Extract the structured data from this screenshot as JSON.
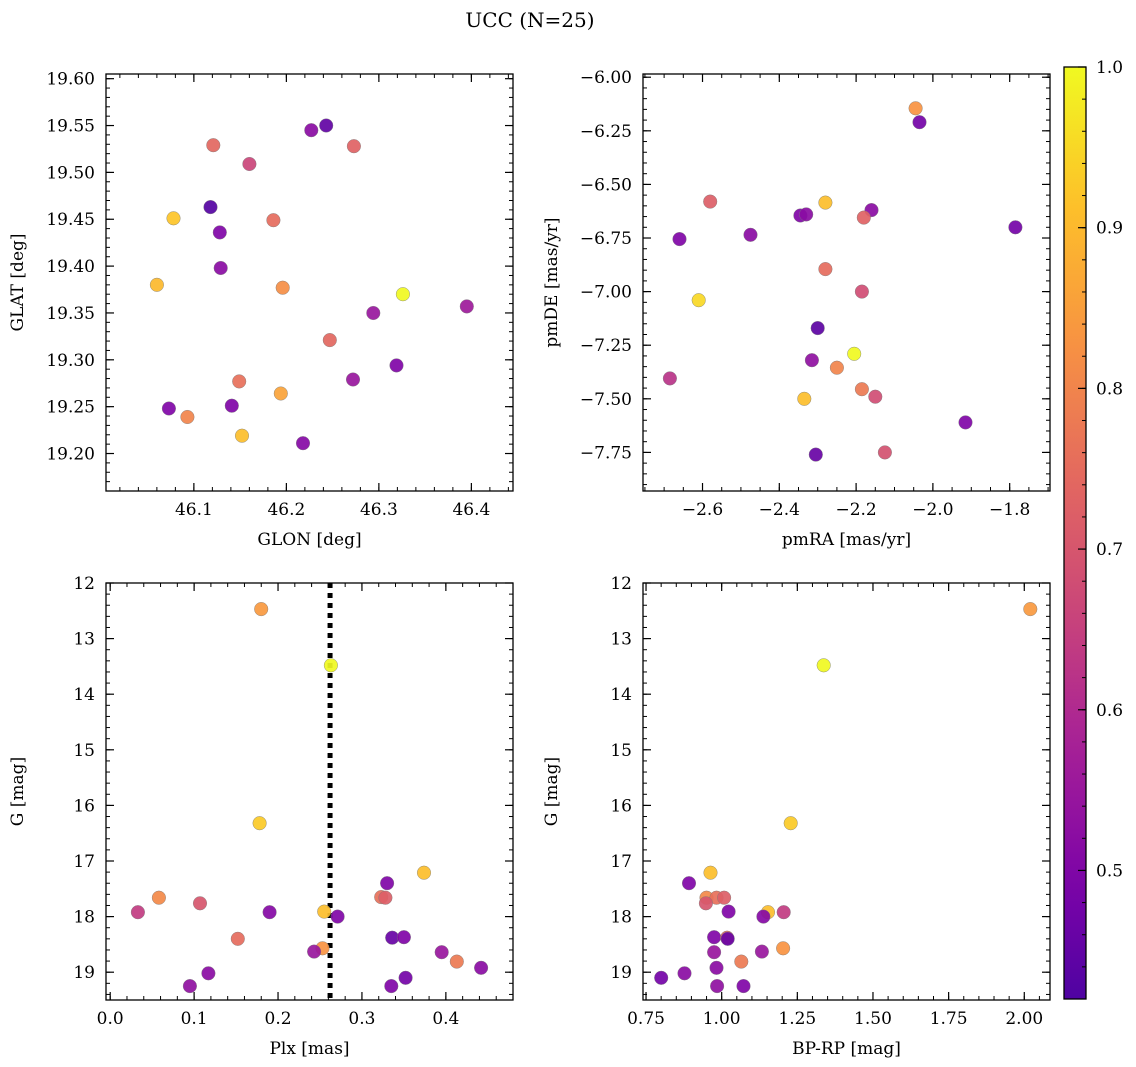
{
  "figure": {
    "title": "UCC (N=25)"
  },
  "colorbar": {
    "colormap": "plasma",
    "min": 0.42,
    "max": 1.0,
    "ticks": [
      0.5,
      0.6,
      0.7,
      0.8,
      0.9,
      1.0
    ],
    "tick_labels": [
      "0.5",
      "0.6",
      "0.7",
      "0.8",
      "0.9",
      "1.0"
    ]
  },
  "chart_data": [
    {
      "type": "scatter",
      "xlabel": "GLON [deg]",
      "ylabel": "GLAT [deg]",
      "xlim": [
        46.005,
        46.445
      ],
      "ylim": [
        19.16,
        19.605
      ],
      "y_inverted": false,
      "xticks": [
        46.1,
        46.2,
        46.3,
        46.4
      ],
      "xtick_labels": [
        "46.1",
        "46.2",
        "46.3",
        "46.4"
      ],
      "yticks": [
        19.2,
        19.25,
        19.3,
        19.35,
        19.4,
        19.45,
        19.5,
        19.55,
        19.6
      ],
      "ytick_labels": [
        "19.20",
        "19.25",
        "19.30",
        "19.35",
        "19.40",
        "19.45",
        "19.50",
        "19.55",
        "19.60"
      ],
      "x": [
        46.243,
        46.227,
        46.121,
        46.273,
        46.16,
        46.078,
        46.118,
        46.186,
        46.128,
        46.129,
        46.06,
        46.196,
        46.326,
        46.395,
        46.294,
        46.247,
        46.319,
        46.272,
        46.149,
        46.194,
        46.073,
        46.141,
        46.093,
        46.152,
        46.218
      ],
      "y": [
        19.55,
        19.545,
        19.529,
        19.528,
        19.509,
        19.451,
        19.463,
        19.449,
        19.436,
        19.398,
        19.38,
        19.377,
        19.37,
        19.357,
        19.35,
        19.321,
        19.294,
        19.279,
        19.277,
        19.264,
        19.248,
        19.251,
        19.239,
        19.219,
        19.211
      ],
      "c": [
        0.45,
        0.52,
        0.74,
        0.73,
        0.66,
        0.92,
        0.43,
        0.75,
        0.5,
        0.52,
        0.9,
        0.82,
        1.0,
        0.56,
        0.55,
        0.74,
        0.5,
        0.55,
        0.76,
        0.86,
        0.5,
        0.5,
        0.8,
        0.91,
        0.51
      ]
    },
    {
      "type": "scatter",
      "xlabel": "pmRA [mas/yr]",
      "ylabel": "pmDE [mas/yr]",
      "xlim": [
        -2.755,
        -1.695
      ],
      "ylim": [
        -7.93,
        -5.985
      ],
      "y_inverted": false,
      "xticks": [
        -2.6,
        -2.4,
        -2.2,
        -2.0,
        -1.8
      ],
      "xtick_labels": [
        "−2.6",
        "−2.4",
        "−2.2",
        "−2.0",
        "−1.8"
      ],
      "yticks": [
        -7.75,
        -7.5,
        -7.25,
        -7.0,
        -6.75,
        -6.5,
        -6.25,
        -6.0
      ],
      "ytick_labels": [
        "−7.75",
        "−7.50",
        "−7.25",
        "−7.00",
        "−6.75",
        "−6.50",
        "−6.25",
        "−6.00"
      ],
      "x": [
        -2.045,
        -2.035,
        -2.58,
        -2.28,
        -2.345,
        -2.33,
        -2.16,
        -2.18,
        -2.66,
        -2.475,
        -2.28,
        -1.785,
        -2.185,
        -2.61,
        -2.3,
        -2.205,
        -2.315,
        -2.25,
        -2.685,
        -2.335,
        -2.185,
        -2.15,
        -1.915,
        -2.305,
        -2.125
      ],
      "y": [
        -6.145,
        -6.21,
        -6.58,
        -6.585,
        -6.645,
        -6.64,
        -6.62,
        -6.655,
        -6.755,
        -6.735,
        -6.895,
        -6.7,
        -7.0,
        -7.04,
        -7.17,
        -7.29,
        -7.32,
        -7.355,
        -7.405,
        -7.5,
        -7.455,
        -7.49,
        -7.61,
        -7.76,
        -7.75
      ],
      "c": [
        0.83,
        0.48,
        0.72,
        0.91,
        0.5,
        0.52,
        0.52,
        0.73,
        0.5,
        0.52,
        0.75,
        0.48,
        0.68,
        0.95,
        0.44,
        1.0,
        0.53,
        0.8,
        0.62,
        0.91,
        0.78,
        0.68,
        0.5,
        0.46,
        0.69
      ]
    },
    {
      "type": "scatter",
      "xlabel": "Plx [mas]",
      "ylabel": "G [mag]",
      "xlim": [
        -0.005,
        0.48
      ],
      "ylim": [
        19.5,
        12.0
      ],
      "y_inverted": true,
      "xticks": [
        0.0,
        0.1,
        0.2,
        0.3,
        0.4
      ],
      "xtick_labels": [
        "0.0",
        "0.1",
        "0.2",
        "0.3",
        "0.4"
      ],
      "yticks": [
        12,
        13,
        14,
        15,
        16,
        17,
        18,
        19
      ],
      "ytick_labels": [
        "12",
        "13",
        "14",
        "15",
        "16",
        "17",
        "18",
        "19"
      ],
      "vline_x": 0.262,
      "x": [
        0.18,
        0.263,
        0.178,
        0.374,
        0.33,
        0.058,
        0.107,
        0.033,
        0.19,
        0.255,
        0.271,
        0.323,
        0.328,
        0.152,
        0.336,
        0.35,
        0.253,
        0.243,
        0.395,
        0.413,
        0.442,
        0.117,
        0.352,
        0.095,
        0.335
      ],
      "y": [
        12.47,
        13.48,
        16.32,
        17.21,
        17.4,
        17.66,
        17.76,
        17.92,
        17.92,
        17.91,
        18.0,
        17.65,
        17.66,
        18.4,
        18.38,
        18.37,
        18.57,
        18.63,
        18.64,
        18.81,
        18.92,
        19.02,
        19.1,
        19.25,
        19.25
      ],
      "c": [
        0.84,
        1.0,
        0.93,
        0.91,
        0.5,
        0.81,
        0.7,
        0.64,
        0.51,
        0.91,
        0.5,
        0.76,
        0.72,
        0.75,
        0.46,
        0.5,
        0.83,
        0.55,
        0.55,
        0.78,
        0.52,
        0.52,
        0.48,
        0.53,
        0.5
      ]
    },
    {
      "type": "scatter",
      "xlabel": "BP-RP [mag]",
      "ylabel": "G [mag]",
      "xlim": [
        0.74,
        2.085
      ],
      "ylim": [
        19.5,
        12.0
      ],
      "y_inverted": true,
      "xticks": [
        0.75,
        1.0,
        1.25,
        1.5,
        1.75,
        2.0
      ],
      "xtick_labels": [
        "0.75",
        "1.00",
        "1.25",
        "1.50",
        "1.75",
        "2.00"
      ],
      "yticks": [
        12,
        13,
        14,
        15,
        16,
        17,
        18,
        19
      ],
      "ytick_labels": [
        "12",
        "13",
        "14",
        "15",
        "16",
        "17",
        "18",
        "19"
      ],
      "x": [
        2.02,
        1.337,
        1.228,
        0.963,
        0.892,
        0.95,
        0.983,
        1.008,
        0.948,
        1.023,
        1.153,
        1.138,
        1.205,
        0.975,
        1.018,
        1.02,
        1.203,
        1.133,
        0.975,
        1.065,
        0.983,
        0.877,
        0.8,
        0.985,
        1.072
      ],
      "y": [
        12.47,
        13.48,
        16.32,
        17.21,
        17.4,
        17.66,
        17.66,
        17.66,
        17.76,
        17.91,
        17.92,
        18.0,
        17.92,
        18.37,
        18.38,
        18.4,
        18.57,
        18.63,
        18.64,
        18.81,
        18.92,
        19.02,
        19.1,
        19.25,
        19.25
      ],
      "c": [
        0.84,
        1.0,
        0.93,
        0.91,
        0.5,
        0.81,
        0.76,
        0.72,
        0.7,
        0.5,
        0.91,
        0.51,
        0.64,
        0.5,
        0.75,
        0.46,
        0.83,
        0.55,
        0.55,
        0.78,
        0.52,
        0.52,
        0.48,
        0.53,
        0.5
      ]
    }
  ]
}
